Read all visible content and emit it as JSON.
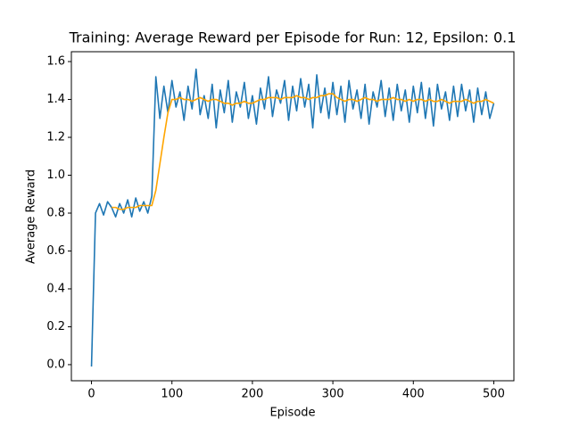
{
  "chart_data": {
    "type": "line",
    "title": "Training: Average Reward per Episode for Run: 12, Epsilon: 0.1",
    "xlabel": "Episode",
    "ylabel": "Average Reward",
    "x": [
      0,
      5,
      10,
      15,
      20,
      25,
      30,
      35,
      40,
      45,
      50,
      55,
      60,
      65,
      70,
      75,
      80,
      85,
      90,
      95,
      100,
      105,
      110,
      115,
      120,
      125,
      130,
      135,
      140,
      145,
      150,
      155,
      160,
      165,
      170,
      175,
      180,
      185,
      190,
      195,
      200,
      205,
      210,
      215,
      220,
      225,
      230,
      235,
      240,
      245,
      250,
      255,
      260,
      265,
      270,
      275,
      280,
      285,
      290,
      295,
      300,
      305,
      310,
      315,
      320,
      325,
      330,
      335,
      340,
      345,
      350,
      355,
      360,
      365,
      370,
      375,
      380,
      385,
      390,
      395,
      400,
      405,
      410,
      415,
      420,
      425,
      430,
      435,
      440,
      445,
      450,
      455,
      460,
      465,
      470,
      475,
      480,
      485,
      490,
      495,
      500
    ],
    "series": [
      {
        "color": "#1f77b4",
        "values": [
          -0.01,
          0.8,
          0.85,
          0.79,
          0.86,
          0.83,
          0.78,
          0.85,
          0.8,
          0.87,
          0.78,
          0.88,
          0.81,
          0.86,
          0.8,
          0.89,
          1.52,
          1.3,
          1.47,
          1.33,
          1.5,
          1.36,
          1.44,
          1.29,
          1.47,
          1.35,
          1.56,
          1.32,
          1.42,
          1.3,
          1.48,
          1.25,
          1.45,
          1.33,
          1.5,
          1.28,
          1.44,
          1.36,
          1.49,
          1.3,
          1.42,
          1.27,
          1.46,
          1.35,
          1.52,
          1.31,
          1.45,
          1.38,
          1.5,
          1.29,
          1.47,
          1.34,
          1.51,
          1.36,
          1.48,
          1.25,
          1.53,
          1.33,
          1.46,
          1.3,
          1.49,
          1.32,
          1.47,
          1.28,
          1.5,
          1.35,
          1.45,
          1.3,
          1.48,
          1.27,
          1.44,
          1.36,
          1.5,
          1.31,
          1.46,
          1.29,
          1.48,
          1.34,
          1.45,
          1.28,
          1.47,
          1.33,
          1.49,
          1.3,
          1.46,
          1.26,
          1.48,
          1.35,
          1.44,
          1.29,
          1.47,
          1.31,
          1.48,
          1.34,
          1.45,
          1.28,
          1.46,
          1.32,
          1.44,
          1.3,
          1.38
        ]
      },
      {
        "color": "#ffa500",
        "values": [
          null,
          null,
          null,
          null,
          null,
          0.83,
          0.83,
          0.82,
          0.82,
          0.83,
          0.83,
          0.83,
          0.84,
          0.84,
          0.84,
          0.84,
          0.92,
          1.06,
          1.2,
          1.33,
          1.4,
          1.4,
          1.41,
          1.4,
          1.4,
          1.39,
          1.4,
          1.41,
          1.4,
          1.39,
          1.4,
          1.4,
          1.39,
          1.38,
          1.38,
          1.37,
          1.38,
          1.38,
          1.39,
          1.38,
          1.38,
          1.39,
          1.4,
          1.4,
          1.41,
          1.41,
          1.41,
          1.4,
          1.41,
          1.41,
          1.41,
          1.42,
          1.41,
          1.41,
          1.4,
          1.41,
          1.41,
          1.42,
          1.42,
          1.43,
          1.43,
          1.41,
          1.4,
          1.39,
          1.4,
          1.4,
          1.39,
          1.4,
          1.41,
          1.4,
          1.4,
          1.39,
          1.4,
          1.4,
          1.4,
          1.41,
          1.4,
          1.4,
          1.39,
          1.4,
          1.39,
          1.4,
          1.4,
          1.39,
          1.4,
          1.39,
          1.39,
          1.4,
          1.39,
          1.38,
          1.39,
          1.39,
          1.39,
          1.4,
          1.39,
          1.38,
          1.39,
          1.39,
          1.4,
          1.39,
          1.38
        ]
      }
    ],
    "xlim": [
      -25,
      525
    ],
    "xticks": [
      0,
      100,
      200,
      300,
      400,
      500
    ],
    "ylim": [
      -0.085,
      1.652
    ],
    "yticks": [
      {
        "value": 0,
        "label": "0.0"
      },
      0.2,
      0.4,
      0.6,
      0.8,
      {
        "value": 1,
        "label": "1.0"
      },
      1.2,
      1.4,
      1.6
    ],
    "grid": false
  }
}
